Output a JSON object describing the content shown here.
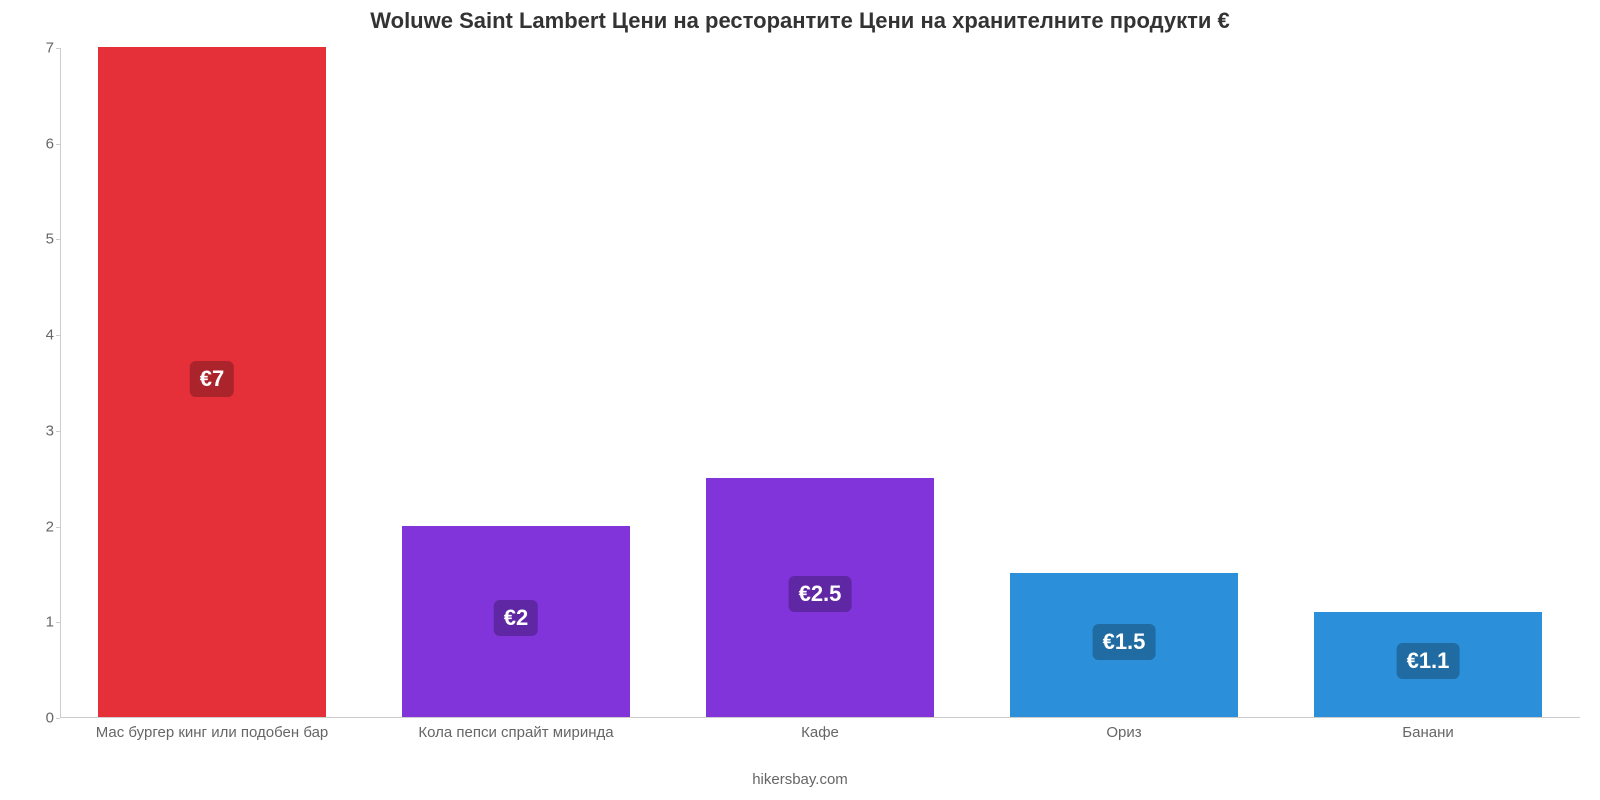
{
  "chart": {
    "type": "bar",
    "title": "Woluwe Saint Lambert Цени на ресторантите Цени на хранителните продукти €",
    "title_fontsize": 22,
    "title_color": "#333333",
    "credit": "hikersbay.com",
    "credit_color": "#666666",
    "background_color": "#ffffff",
    "axis_line_color": "#cccccc",
    "tick_label_color": "#666666",
    "tick_label_fontsize": 15,
    "y": {
      "min": 0,
      "max": 7,
      "tick_step": 1
    },
    "bar_width_ratio": 0.75,
    "value_label_fontsize": 22,
    "categories": [
      {
        "label": "Мас бургер кинг или подобен бар",
        "value": 7,
        "value_text": "€7",
        "bar_color": "#e52f39",
        "badge_bg": "#ab232b"
      },
      {
        "label": "Кола пепси спрайт миринда",
        "value": 2,
        "value_text": "€2",
        "bar_color": "#8034da",
        "badge_bg": "#5f27a3"
      },
      {
        "label": "Кафе",
        "value": 2.5,
        "value_text": "€2.5",
        "bar_color": "#8034da",
        "badge_bg": "#5f27a3"
      },
      {
        "label": "Ориз",
        "value": 1.5,
        "value_text": "€1.5",
        "bar_color": "#2b90d9",
        "badge_bg": "#1f6ba2"
      },
      {
        "label": "Банани",
        "value": 1.1,
        "value_text": "€1.1",
        "bar_color": "#2b90d9",
        "badge_bg": "#1f6ba2"
      }
    ]
  }
}
